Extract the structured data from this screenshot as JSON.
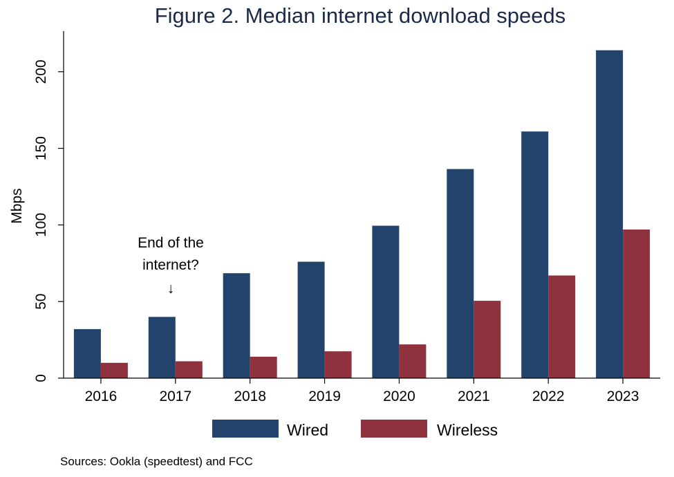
{
  "chart_data": {
    "type": "bar",
    "title": "Figure 2.  Median internet download speeds",
    "xlabel": "",
    "ylabel": "Mbps",
    "categories": [
      "2016",
      "2017",
      "2018",
      "2019",
      "2020",
      "2021",
      "2022",
      "2023"
    ],
    "series": [
      {
        "name": "Wired",
        "color": "#22446c",
        "values": [
          32,
          40,
          68.5,
          76,
          99.5,
          136.5,
          161,
          214
        ]
      },
      {
        "name": "Wireless",
        "color": "#8f323d",
        "values": [
          10,
          11,
          14,
          17.5,
          22,
          50.5,
          67,
          97
        ]
      }
    ],
    "ylim": [
      0,
      222
    ],
    "yticks": [
      0,
      50,
      100,
      150,
      200
    ],
    "grid": false,
    "legend_position": "bottom",
    "annotation": {
      "lines": [
        "End of the",
        "internet?"
      ],
      "arrow": "↓",
      "category": "2017"
    },
    "source": "Sources: Ookla (speedtest) and FCC"
  }
}
